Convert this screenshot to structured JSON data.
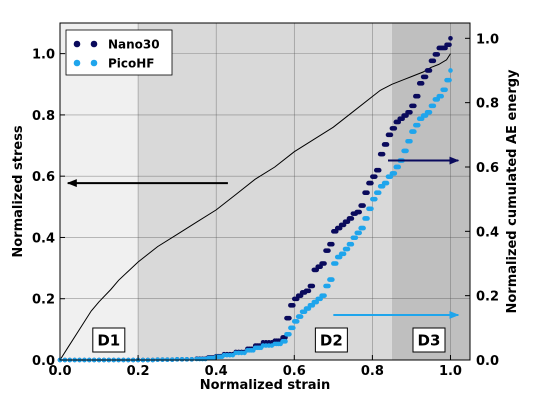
{
  "chart_data": {
    "type": "scatter",
    "xlabel": "Normalized strain",
    "ylabel": "Normalized stress",
    "y2label": "Normalized cumulated AE energy",
    "xlim": [
      0.0,
      1.05
    ],
    "ylim": [
      0.0,
      1.1
    ],
    "y2lim": [
      0.0,
      1.0476
    ],
    "xticks": [
      "0.0",
      "0.2",
      "0.4",
      "0.6",
      "0.8",
      "1.0"
    ],
    "yticks": [
      "0.0",
      "0.2",
      "0.4",
      "0.6",
      "0.8",
      "1.0"
    ],
    "y2ticks": [
      "0.0",
      "0.2",
      "0.4",
      "0.6",
      "0.8",
      "1.0"
    ],
    "grid": true,
    "legend_position": "top-left",
    "zones": [
      {
        "label": "D1",
        "x_start": 0.0,
        "x_end": 0.2,
        "color": "#f0f0f0"
      },
      {
        "label": "D2",
        "x_start": 0.2,
        "x_end": 0.85,
        "color": "#d9d9d9"
      },
      {
        "label": "D3",
        "x_start": 0.85,
        "x_end": 1.05,
        "color": "#bfbfbf"
      }
    ],
    "stress_curve": {
      "x": [
        0.0,
        0.02,
        0.05,
        0.08,
        0.1,
        0.13,
        0.15,
        0.2,
        0.25,
        0.3,
        0.35,
        0.4,
        0.45,
        0.5,
        0.55,
        0.6,
        0.65,
        0.7,
        0.75,
        0.8,
        0.82,
        0.85,
        0.88,
        0.9,
        0.93,
        0.95,
        0.97,
        0.99,
        1.0
      ],
      "y": [
        0.0,
        0.04,
        0.1,
        0.16,
        0.19,
        0.23,
        0.26,
        0.32,
        0.37,
        0.41,
        0.45,
        0.49,
        0.54,
        0.59,
        0.63,
        0.68,
        0.72,
        0.76,
        0.81,
        0.86,
        0.88,
        0.9,
        0.915,
        0.925,
        0.94,
        0.955,
        0.965,
        0.98,
        1.0
      ]
    },
    "series": [
      {
        "name": "Nano30",
        "color": "#0a0a5c",
        "axis": "right",
        "x": [
          0.0,
          0.05,
          0.1,
          0.15,
          0.2,
          0.25,
          0.3,
          0.35,
          0.38,
          0.4,
          0.42,
          0.45,
          0.48,
          0.5,
          0.52,
          0.55,
          0.57,
          0.58,
          0.59,
          0.6,
          0.61,
          0.62,
          0.63,
          0.64,
          0.65,
          0.66,
          0.67,
          0.68,
          0.69,
          0.7,
          0.71,
          0.72,
          0.73,
          0.74,
          0.75,
          0.76,
          0.77,
          0.78,
          0.79,
          0.8,
          0.81,
          0.82,
          0.83,
          0.84,
          0.85,
          0.86,
          0.87,
          0.88,
          0.89,
          0.9,
          0.91,
          0.92,
          0.93,
          0.94,
          0.95,
          0.96,
          0.97,
          0.98,
          0.99,
          1.0
        ],
        "y": [
          0.0,
          0.0,
          0.0,
          0.0,
          0.0,
          0.001,
          0.002,
          0.004,
          0.008,
          0.012,
          0.018,
          0.025,
          0.035,
          0.045,
          0.055,
          0.06,
          0.07,
          0.13,
          0.17,
          0.19,
          0.2,
          0.21,
          0.215,
          0.23,
          0.28,
          0.29,
          0.3,
          0.34,
          0.36,
          0.4,
          0.41,
          0.42,
          0.43,
          0.44,
          0.455,
          0.46,
          0.48,
          0.52,
          0.55,
          0.57,
          0.59,
          0.64,
          0.67,
          0.7,
          0.72,
          0.74,
          0.75,
          0.76,
          0.77,
          0.79,
          0.82,
          0.86,
          0.88,
          0.9,
          0.93,
          0.95,
          0.97,
          0.97,
          0.98,
          1.0
        ]
      },
      {
        "name": "PicoHF",
        "color": "#1fa5ec",
        "axis": "right",
        "x": [
          0.0,
          0.05,
          0.1,
          0.15,
          0.2,
          0.25,
          0.3,
          0.35,
          0.38,
          0.4,
          0.42,
          0.45,
          0.48,
          0.5,
          0.52,
          0.55,
          0.57,
          0.58,
          0.59,
          0.6,
          0.61,
          0.62,
          0.63,
          0.64,
          0.65,
          0.66,
          0.67,
          0.68,
          0.69,
          0.7,
          0.71,
          0.72,
          0.73,
          0.74,
          0.75,
          0.76,
          0.77,
          0.78,
          0.79,
          0.8,
          0.81,
          0.82,
          0.83,
          0.84,
          0.85,
          0.86,
          0.87,
          0.88,
          0.89,
          0.9,
          0.91,
          0.92,
          0.93,
          0.94,
          0.95,
          0.96,
          0.97,
          0.98,
          0.99,
          1.0
        ],
        "y": [
          0.0,
          0.0,
          0.0,
          0.0,
          0.0,
          0.001,
          0.002,
          0.003,
          0.006,
          0.01,
          0.015,
          0.022,
          0.03,
          0.038,
          0.045,
          0.05,
          0.058,
          0.08,
          0.1,
          0.12,
          0.135,
          0.15,
          0.16,
          0.17,
          0.18,
          0.19,
          0.2,
          0.23,
          0.25,
          0.3,
          0.32,
          0.33,
          0.345,
          0.36,
          0.38,
          0.395,
          0.41,
          0.44,
          0.47,
          0.5,
          0.52,
          0.54,
          0.55,
          0.57,
          0.58,
          0.6,
          0.62,
          0.65,
          0.68,
          0.71,
          0.73,
          0.75,
          0.76,
          0.77,
          0.79,
          0.81,
          0.82,
          0.84,
          0.87,
          0.9
        ]
      }
    ],
    "annotations": [
      {
        "type": "arrow",
        "direction": "left",
        "color": "#000000",
        "x_from": 0.43,
        "x_to": 0.02,
        "y_axis_value": 0.55
      },
      {
        "type": "arrow",
        "direction": "right",
        "color": "#0a0a5c",
        "x_from": 0.84,
        "x_to": 1.02,
        "y_axis_value": 0.62
      },
      {
        "type": "arrow",
        "direction": "right",
        "color": "#1fa5ec",
        "x_from": 0.7,
        "x_to": 1.02,
        "y_axis_value": 0.14
      }
    ]
  }
}
